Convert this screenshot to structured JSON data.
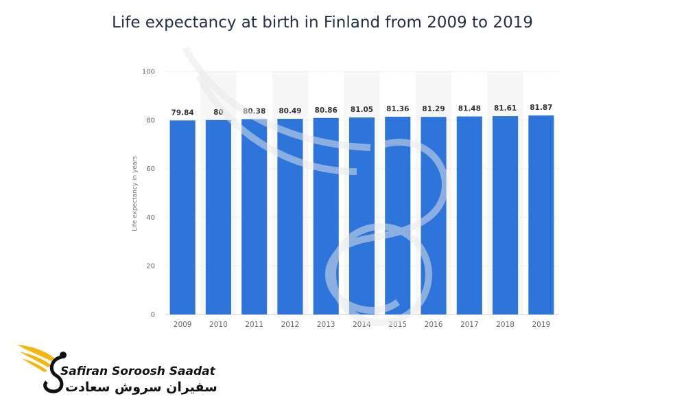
{
  "chart_data": {
    "type": "bar",
    "title": "Life expectancy at birth in Finland from 2009 to 2019",
    "xlabel": "",
    "ylabel": "Life expectancy in years",
    "categories": [
      "2009",
      "2010",
      "2011",
      "2012",
      "2013",
      "2014",
      "2015",
      "2016",
      "2017",
      "2018",
      "2019"
    ],
    "values": [
      79.84,
      80,
      80.38,
      80.49,
      80.86,
      81.05,
      81.36,
      81.29,
      81.48,
      81.61,
      81.87
    ],
    "value_labels": [
      "79.84",
      "80",
      "80.38",
      "80.49",
      "80.86",
      "81.05",
      "81.36",
      "81.29",
      "81.48",
      "81.61",
      "81.87"
    ],
    "ylim": [
      0,
      100
    ],
    "yticks": [
      "0",
      "20",
      "40",
      "60",
      "80",
      "100"
    ],
    "grid": true,
    "bar_color": "#2e75db"
  },
  "logo": {
    "name_en": "Safiran Soroosh Saadat",
    "name_fa": "سفیران سروش سعادت",
    "icon": "winged-s-logo-icon"
  }
}
